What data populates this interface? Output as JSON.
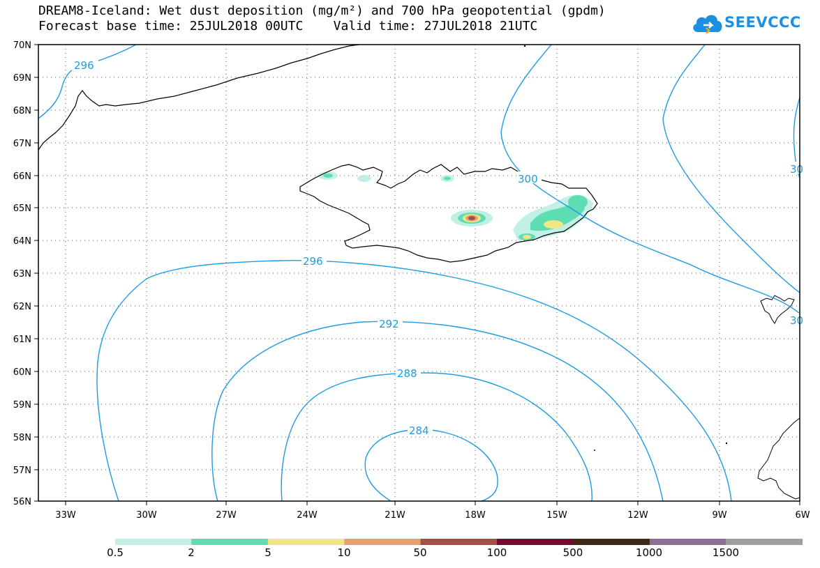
{
  "title": {
    "line1": "DREAM8-Iceland: Wet dust deposition (mg/m²) and 700 hPa geopotential (gpdm)",
    "line2": "Forecast base time: 25JUL2018 00UTC    Valid time: 27JUL2018 21UTC"
  },
  "logo": {
    "text": "SEEVCCC",
    "icon": "cloud-icon",
    "color": "#1d8fe1"
  },
  "map": {
    "lat_labels": [
      "70N",
      "69N",
      "68N",
      "67N",
      "66N",
      "65N",
      "64N",
      "63N",
      "62N",
      "61N",
      "60N",
      "59N",
      "58N",
      "57N",
      "56N"
    ],
    "lon_labels": [
      "33W",
      "30W",
      "27W",
      "24W",
      "21W",
      "18W",
      "15W",
      "12W",
      "9W",
      "6W"
    ],
    "contour_color": "#1b9be3",
    "contour_labels": [
      "296",
      "300",
      "296",
      "292",
      "288",
      "284",
      "30",
      "30"
    ]
  },
  "legend": {
    "labels": [
      "0.5",
      "2",
      "5",
      "10",
      "50",
      "100",
      "500",
      "1000",
      "1500"
    ],
    "colors": [
      "#c2f0e6",
      "#5edcb4",
      "#f0e682",
      "#e6a078",
      "#a05048",
      "#780a32",
      "#3c2814",
      "#8c6e96",
      "#a0a0a0"
    ]
  }
}
